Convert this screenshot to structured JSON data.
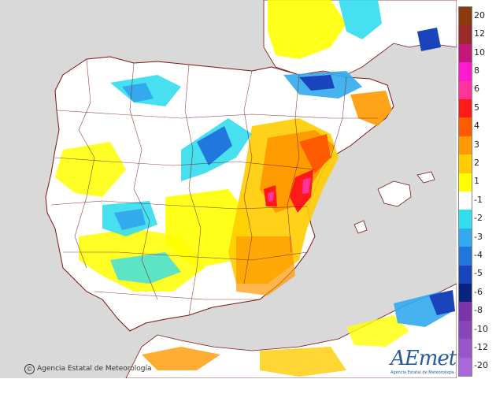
{
  "map": {
    "land_color": "#ffffff",
    "sea_color": "#d9d9d9",
    "border_color": "#7a1515"
  },
  "legend": {
    "levels": [
      {
        "label": "20",
        "color": "#8b3a0e"
      },
      {
        "label": "12",
        "color": "#9a2a2a"
      },
      {
        "label": "10",
        "color": "#c2187a"
      },
      {
        "label": "8",
        "color": "#ff1ad0"
      },
      {
        "label": "6",
        "color": "#ff3399"
      },
      {
        "label": "5",
        "color": "#ff1a1a"
      },
      {
        "label": "4",
        "color": "#ff5a00"
      },
      {
        "label": "3",
        "color": "#ff9900"
      },
      {
        "label": "2",
        "color": "#ffcc00"
      },
      {
        "label": "1",
        "color": "#ffff00"
      },
      {
        "label": "-1",
        "color": "#ffffff"
      },
      {
        "label": "-2",
        "color": "#33ddee"
      },
      {
        "label": "-3",
        "color": "#33aaee"
      },
      {
        "label": "-4",
        "color": "#2277dd"
      },
      {
        "label": "-5",
        "color": "#1a44bb"
      },
      {
        "label": "-6",
        "color": "#0a2280"
      },
      {
        "label": "-8",
        "color": "#7a33aa"
      },
      {
        "label": "-10",
        "color": "#8844bb"
      },
      {
        "label": "-12",
        "color": "#9955cc"
      },
      {
        "label": "-20",
        "color": "#aa66dd"
      }
    ]
  },
  "copyright": {
    "symbol": "©",
    "text": "Agencia Estatal de Meteorología"
  },
  "logo": {
    "name": "AEmet",
    "subtitle": "Agencia Estatal de Meteorología"
  }
}
